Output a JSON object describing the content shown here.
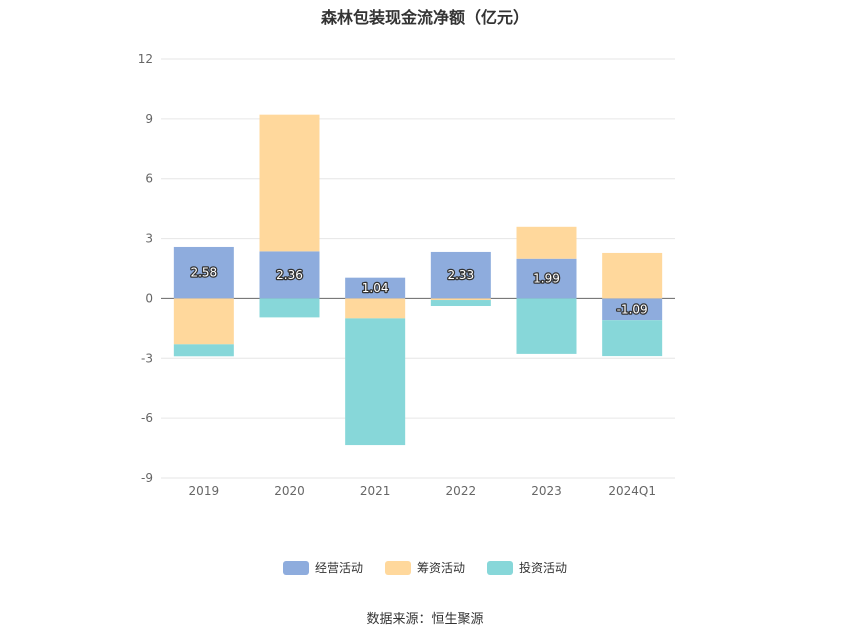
{
  "title": "森林包装现金流净额（亿元）",
  "source": "数据来源：恒生聚源",
  "colors": {
    "operating": "#8eacdd",
    "financing": "#ffd89c",
    "investing": "#87d7d9"
  },
  "legend": [
    "经营活动",
    "筹资活动",
    "投资活动"
  ],
  "chart_data": {
    "type": "bar",
    "stacked": true,
    "categories": [
      "2019",
      "2020",
      "2021",
      "2022",
      "2023",
      "2024Q1"
    ],
    "series": [
      {
        "name": "经营活动",
        "values": [
          2.58,
          2.36,
          1.04,
          2.33,
          1.99,
          -1.09
        ],
        "labels": [
          "2.58",
          "2.36",
          "1.04",
          "2.33",
          "1.99",
          "-1.09"
        ]
      },
      {
        "name": "筹资活动",
        "values": [
          -2.3,
          6.85,
          -1.0,
          -0.08,
          1.6,
          2.28
        ]
      },
      {
        "name": "投资活动",
        "values": [
          -0.6,
          -0.95,
          -6.35,
          -0.3,
          -2.78,
          -1.8
        ]
      }
    ],
    "ylim": [
      -9,
      12
    ],
    "yticks": [
      "12",
      "9",
      "6",
      "3",
      "0",
      "-3",
      "-6",
      "-9"
    ],
    "grid": true,
    "legend_position": "bottom"
  }
}
